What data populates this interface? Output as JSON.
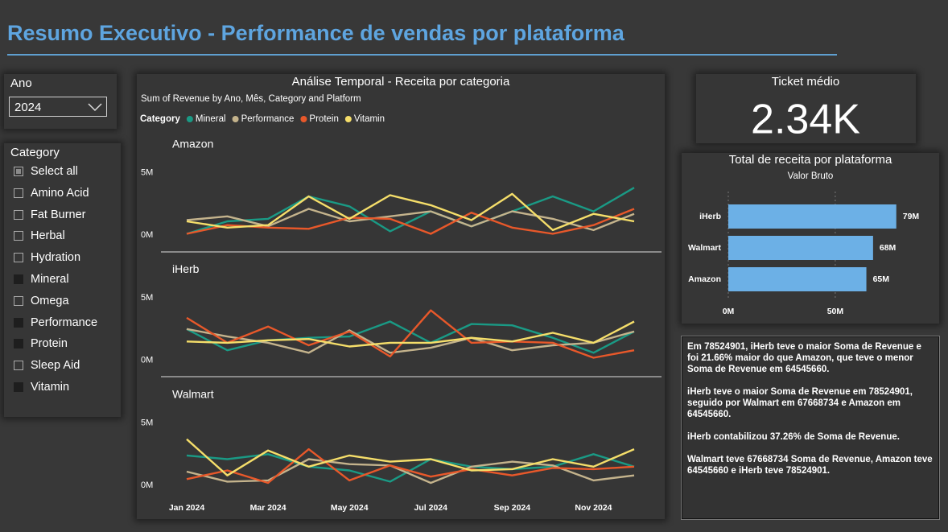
{
  "title": "Resumo Executivo - Performance de vendas por plataforma",
  "year_filter": {
    "label": "Ano",
    "value": "2024"
  },
  "category_filter": {
    "label": "Category",
    "items": [
      {
        "label": "Select all",
        "state": "partial"
      },
      {
        "label": "Amino Acid",
        "state": "off"
      },
      {
        "label": "Fat Burner",
        "state": "off"
      },
      {
        "label": "Herbal",
        "state": "off"
      },
      {
        "label": "Hydration",
        "state": "off"
      },
      {
        "label": "Mineral",
        "state": "on"
      },
      {
        "label": "Omega",
        "state": "off"
      },
      {
        "label": "Performance",
        "state": "on"
      },
      {
        "label": "Protein",
        "state": "on"
      },
      {
        "label": "Sleep Aid",
        "state": "off"
      },
      {
        "label": "Vitamin",
        "state": "on"
      }
    ]
  },
  "kpi": {
    "title": "Ticket médio",
    "value": "2.34K"
  },
  "chart_data": [
    {
      "type": "line",
      "title": "Análise Temporal - Receita por categoria",
      "subtitle": "Sum of Revenue by Ano, Mês, Category and Platform",
      "legend_title": "Category",
      "categories": [
        "Jan 2024",
        null,
        "Mar 2024",
        null,
        "May 2024",
        null,
        "Jul 2024",
        null,
        "Sep 2024",
        null,
        "Nov 2024",
        null
      ],
      "series": [
        {
          "name": "Mineral",
          "color": "#1a9a85"
        },
        {
          "name": "Performance",
          "color": "#c4b38c"
        },
        {
          "name": "Protein",
          "color": "#e8582a"
        },
        {
          "name": "Vitamin",
          "color": "#f5de6a"
        }
      ],
      "ylim": [
        -1.35,
        6.2
      ],
      "yticks": [
        {
          "value": 0,
          "label": "0M"
        },
        {
          "value": 5,
          "label": "5M"
        }
      ],
      "panels": [
        {
          "name": "Amazon",
          "values": [
            [
              0.1,
              1.1,
              1.3,
              3.1,
              2.3,
              0.3,
              1.9,
              0.7,
              1.9,
              3.1,
              1.9,
              3.8
            ],
            [
              1.2,
              1.5,
              0.7,
              2.1,
              1.1,
              1.5,
              1.9,
              0.7,
              1.9,
              1.3,
              0.4,
              1.7
            ],
            [
              0.1,
              0.8,
              0.6,
              0.5,
              1.4,
              1.3,
              0.1,
              1.8,
              0.6,
              0.1,
              0.8,
              2.1
            ],
            [
              1.1,
              0.6,
              0.8,
              3.1,
              1.3,
              3.2,
              2.4,
              1.2,
              3.3,
              0.4,
              1.7,
              1.1
            ]
          ]
        },
        {
          "name": "iHerb",
          "values": [
            [
              2.5,
              0.8,
              1.6,
              1.8,
              1.9,
              3.1,
              1.4,
              2.9,
              2.8,
              1.8,
              0.6,
              2.3
            ],
            [
              2.5,
              1.9,
              1.4,
              0.6,
              2.4,
              0.6,
              1.0,
              1.8,
              0.8,
              1.2,
              1.4,
              2.3
            ],
            [
              3.4,
              1.4,
              2.7,
              1.2,
              2.3,
              0.3,
              4.0,
              1.4,
              1.5,
              1.4,
              0.2,
              0.8
            ],
            [
              1.5,
              1.4,
              1.6,
              1.7,
              1.1,
              1.4,
              1.4,
              1.8,
              1.5,
              2.2,
              1.4,
              3.1
            ]
          ]
        },
        {
          "name": "Walmart",
          "values": [
            [
              2.4,
              2.1,
              2.5,
              1.5,
              1.2,
              0.3,
              2.1,
              1.5,
              1.3,
              1.5,
              2.5,
              1.5
            ],
            [
              1.1,
              0.3,
              0.4,
              2.1,
              1.7,
              1.6,
              0.2,
              1.5,
              1.9,
              1.6,
              0.4,
              0.8
            ],
            [
              0.5,
              1.2,
              0.2,
              2.9,
              0.4,
              1.6,
              0.7,
              1.3,
              0.8,
              1.4,
              1.3,
              1.5
            ],
            [
              3.7,
              0.8,
              2.8,
              1.5,
              2.4,
              1.9,
              2.1,
              1.2,
              1.3,
              2.1,
              1.5,
              2.9
            ]
          ]
        }
      ]
    },
    {
      "type": "bar",
      "orientation": "horizontal",
      "title": "Total de receita por plataforma",
      "subtitle": "Valor Bruto",
      "categories": [
        "iHerb",
        "Walmart",
        "Amazon"
      ],
      "values": [
        78.524901,
        67.668734,
        64.54566
      ],
      "value_labels": [
        "79M",
        "68M",
        "65M"
      ],
      "color": "#6cb0e6",
      "xlim": [
        0,
        79
      ],
      "xticks": [
        {
          "value": 0,
          "label": "0M"
        },
        {
          "value": 50,
          "label": "50M"
        }
      ],
      "grid": true
    }
  ],
  "narrative": [
    "Em 78524901, iHerb teve o maior Soma de Revenue e foi 21.66% maior do que Amazon, que teve o menor Soma de Revenue em 64545660.",
    "iHerb teve o maior Soma de Revenue em 78524901, seguido por Walmart em 67668734 e Amazon em 64545660.",
    "iHerb contabilizou 37.26% de Soma de Revenue.",
    "Walmart teve 67668734 Soma de Revenue, Amazon teve 64545660 e iHerb teve 78524901."
  ]
}
